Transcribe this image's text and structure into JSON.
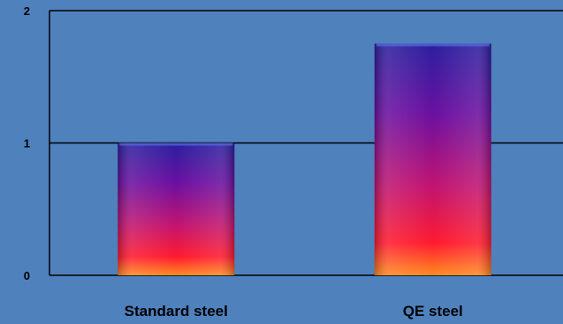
{
  "chart_data": {
    "type": "bar",
    "categories": [
      "Standard steel",
      "QE steel"
    ],
    "values": [
      1.0,
      1.75
    ],
    "title": "",
    "xlabel": "",
    "ylabel": "",
    "ylim": [
      0,
      2
    ],
    "yticks": [
      0,
      1,
      2
    ],
    "ytick_labels": [
      "0",
      "1",
      "2"
    ],
    "grid": true,
    "legend": "none"
  },
  "colors": {
    "background": "#4f81bd",
    "bar_top": "#2a1f9e",
    "bar_mid": "#c2136f",
    "bar_low": "#ff1a2e",
    "bar_bottom": "#ff8a1f"
  }
}
